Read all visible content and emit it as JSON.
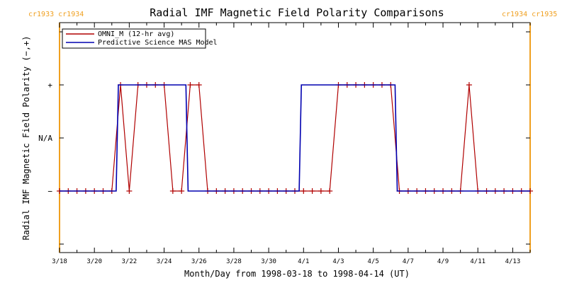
{
  "chart_data": {
    "type": "line",
    "title": "Radial IMF Magnetic Field Polarity Comparisons",
    "xlabel": "Month/Day from 1998-03-18 to 1998-04-14 (UT)",
    "ylabel": "Radial IMF Magnetic Field Polarity (−,+)",
    "x_range": [
      "1998-03-18",
      "1998-04-14"
    ],
    "y_ticks": [
      "+",
      "N/A",
      "−"
    ],
    "x_ticks": [
      "3/18",
      "3/20",
      "3/22",
      "3/24",
      "3/26",
      "3/28",
      "3/30",
      "4/1",
      "4/3",
      "4/5",
      "4/7",
      "4/9",
      "4/11",
      "4/13"
    ],
    "x_tick_dates": [
      "1998-03-18",
      "1998-03-20",
      "1998-03-22",
      "1998-03-24",
      "1998-03-26",
      "1998-03-28",
      "1998-03-30",
      "1998-04-01",
      "1998-04-03",
      "1998-04-05",
      "1998-04-07",
      "1998-04-09",
      "1998-04-11",
      "1998-04-13"
    ],
    "legend_position": "top-left",
    "carrington_markers": [
      {
        "date": "1998-03-18",
        "label": "cr1933 cr1934",
        "color": "#f0a020"
      },
      {
        "date": "1998-04-14",
        "label": "cr1934 cr1935",
        "color": "#f0a020"
      }
    ],
    "series": [
      {
        "name": "OMNI_M (12-hr avg)",
        "color": "#b00000",
        "marker": "+",
        "step": false,
        "points": [
          [
            "1998-03-18T00:00",
            "-"
          ],
          [
            "1998-03-18T12:00",
            "-"
          ],
          [
            "1998-03-19T00:00",
            "-"
          ],
          [
            "1998-03-19T12:00",
            "-"
          ],
          [
            "1998-03-20T00:00",
            "-"
          ],
          [
            "1998-03-20T12:00",
            "-"
          ],
          [
            "1998-03-21T00:00",
            "-"
          ],
          [
            "1998-03-21T12:00",
            "+"
          ],
          [
            "1998-03-22T00:00",
            "-"
          ],
          [
            "1998-03-22T12:00",
            "+"
          ],
          [
            "1998-03-23T00:00",
            "+"
          ],
          [
            "1998-03-23T12:00",
            "+"
          ],
          [
            "1998-03-24T00:00",
            "+"
          ],
          [
            "1998-03-24T12:00",
            "-"
          ],
          [
            "1998-03-25T00:00",
            "-"
          ],
          [
            "1998-03-25T12:00",
            "+"
          ],
          [
            "1998-03-26T00:00",
            "+"
          ],
          [
            "1998-03-26T12:00",
            "-"
          ],
          [
            "1998-03-27T00:00",
            "-"
          ],
          [
            "1998-03-27T12:00",
            "-"
          ],
          [
            "1998-03-28T00:00",
            "-"
          ],
          [
            "1998-03-28T12:00",
            "-"
          ],
          [
            "1998-03-29T00:00",
            "-"
          ],
          [
            "1998-03-29T12:00",
            "-"
          ],
          [
            "1998-03-30T00:00",
            "-"
          ],
          [
            "1998-03-30T12:00",
            "-"
          ],
          [
            "1998-03-31T00:00",
            "-"
          ],
          [
            "1998-03-31T12:00",
            "-"
          ],
          [
            "1998-04-01T00:00",
            "-"
          ],
          [
            "1998-04-01T12:00",
            "-"
          ],
          [
            "1998-04-02T00:00",
            "-"
          ],
          [
            "1998-04-02T12:00",
            "-"
          ],
          [
            "1998-04-03T00:00",
            "+"
          ],
          [
            "1998-04-03T12:00",
            "+"
          ],
          [
            "1998-04-04T00:00",
            "+"
          ],
          [
            "1998-04-04T12:00",
            "+"
          ],
          [
            "1998-04-05T00:00",
            "+"
          ],
          [
            "1998-04-05T12:00",
            "+"
          ],
          [
            "1998-04-06T00:00",
            "+"
          ],
          [
            "1998-04-06T12:00",
            "-"
          ],
          [
            "1998-04-07T00:00",
            "-"
          ],
          [
            "1998-04-07T12:00",
            "-"
          ],
          [
            "1998-04-08T00:00",
            "-"
          ],
          [
            "1998-04-08T12:00",
            "-"
          ],
          [
            "1998-04-09T00:00",
            "-"
          ],
          [
            "1998-04-09T12:00",
            "-"
          ],
          [
            "1998-04-10T00:00",
            "-"
          ],
          [
            "1998-04-10T12:00",
            "+"
          ],
          [
            "1998-04-11T00:00",
            "-"
          ],
          [
            "1998-04-11T12:00",
            "-"
          ],
          [
            "1998-04-12T00:00",
            "-"
          ],
          [
            "1998-04-12T12:00",
            "-"
          ],
          [
            "1998-04-13T00:00",
            "-"
          ],
          [
            "1998-04-13T12:00",
            "-"
          ],
          [
            "1998-04-14T00:00",
            "-"
          ]
        ]
      },
      {
        "name": "Predictive Science MAS Model",
        "color": "#0000b0",
        "step": true,
        "points": [
          [
            "1998-03-18T00:00",
            "-"
          ],
          [
            "1998-03-21T06:00",
            "-"
          ],
          [
            "1998-03-21T09:00",
            "+"
          ],
          [
            "1998-03-25T06:00",
            "+"
          ],
          [
            "1998-03-25T09:00",
            "-"
          ],
          [
            "1998-03-31T18:00",
            "-"
          ],
          [
            "1998-03-31T21:00",
            "+"
          ],
          [
            "1998-04-06T06:00",
            "+"
          ],
          [
            "1998-04-06T09:00",
            "-"
          ],
          [
            "1998-04-14T00:00",
            "-"
          ]
        ]
      }
    ]
  }
}
